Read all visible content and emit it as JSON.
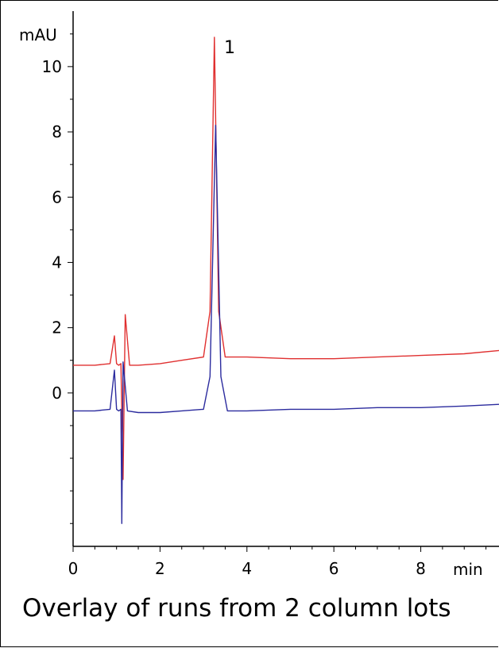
{
  "chart_data": {
    "type": "line",
    "title": "Overlay of runs from 2 column lots",
    "xlabel": "min",
    "ylabel": "mAU",
    "xlim": [
      0,
      9.8
    ],
    "ylim": [
      -4.7,
      11.7
    ],
    "x_ticks": [
      0,
      2,
      4,
      6,
      8
    ],
    "y_ticks": [
      0,
      2,
      4,
      6,
      8,
      10
    ],
    "grid": false,
    "legend": "none",
    "annotations": [
      {
        "text": "1",
        "x": 3.4,
        "y": 10.6
      }
    ],
    "series": [
      {
        "color": "#e03030",
        "points": [
          [
            0.0,
            0.85
          ],
          [
            0.5,
            0.85
          ],
          [
            0.85,
            0.9
          ],
          [
            0.95,
            1.75
          ],
          [
            1.0,
            0.9
          ],
          [
            1.05,
            0.85
          ],
          [
            1.1,
            0.9
          ],
          [
            1.15,
            -2.65
          ],
          [
            1.2,
            2.4
          ],
          [
            1.3,
            0.85
          ],
          [
            1.5,
            0.85
          ],
          [
            2.0,
            0.9
          ],
          [
            2.5,
            1.0
          ],
          [
            3.0,
            1.1
          ],
          [
            3.15,
            2.5
          ],
          [
            3.25,
            10.9
          ],
          [
            3.35,
            2.5
          ],
          [
            3.5,
            1.1
          ],
          [
            4.0,
            1.1
          ],
          [
            5.0,
            1.05
          ],
          [
            6.0,
            1.05
          ],
          [
            7.0,
            1.1
          ],
          [
            8.0,
            1.15
          ],
          [
            9.0,
            1.2
          ],
          [
            9.8,
            1.3
          ]
        ]
      },
      {
        "color": "#2b2b9e",
        "points": [
          [
            0.0,
            -0.55
          ],
          [
            0.5,
            -0.55
          ],
          [
            0.85,
            -0.5
          ],
          [
            0.95,
            0.7
          ],
          [
            1.0,
            -0.5
          ],
          [
            1.05,
            -0.55
          ],
          [
            1.1,
            -0.5
          ],
          [
            1.12,
            -4.0
          ],
          [
            1.15,
            0.95
          ],
          [
            1.25,
            -0.55
          ],
          [
            1.5,
            -0.6
          ],
          [
            2.0,
            -0.6
          ],
          [
            2.5,
            -0.55
          ],
          [
            3.0,
            -0.5
          ],
          [
            3.15,
            0.5
          ],
          [
            3.28,
            8.2
          ],
          [
            3.4,
            0.5
          ],
          [
            3.55,
            -0.55
          ],
          [
            4.0,
            -0.55
          ],
          [
            5.0,
            -0.5
          ],
          [
            6.0,
            -0.5
          ],
          [
            7.0,
            -0.45
          ],
          [
            8.0,
            -0.45
          ],
          [
            9.0,
            -0.4
          ],
          [
            9.8,
            -0.35
          ]
        ]
      }
    ]
  }
}
